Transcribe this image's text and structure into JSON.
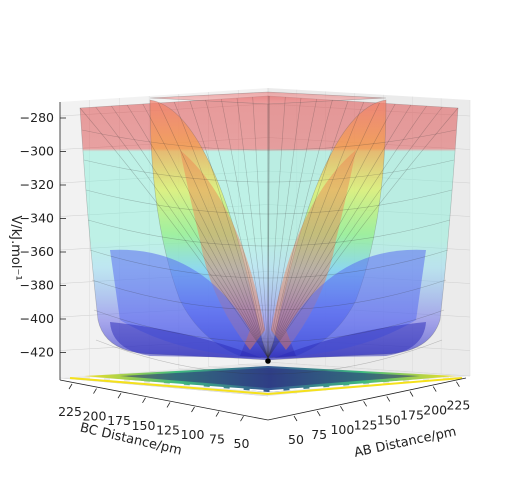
{
  "chart_data": {
    "type": "surface",
    "title": "",
    "xlabel": "AB Distance/pm",
    "ylabel": "BC Distance/pm",
    "zlabel": "V/kJ.mol⁻¹",
    "x_ticks": [
      "50",
      "75",
      "100",
      "125",
      "150",
      "175",
      "200",
      "225"
    ],
    "y_ticks": [
      "225",
      "200",
      "175",
      "150",
      "125",
      "100",
      "75",
      "50"
    ],
    "z_ticks": [
      "−280",
      "−300",
      "−320",
      "−340",
      "−360",
      "−380",
      "−400",
      "−420"
    ],
    "xlim": [
      50,
      230
    ],
    "ylim": [
      50,
      230
    ],
    "zlim": [
      -435,
      -275
    ],
    "colormap_surface": "jet",
    "colormap_contour": "viridis",
    "grid": true,
    "marker_point": {
      "x": 74,
      "y": 74,
      "z": -432
    },
    "colors": {
      "pane": "#f2f2f2",
      "red": "#e05555",
      "orange": "#f4a24a",
      "yellow": "#e6f05a",
      "green": "#8ef07a",
      "cyan": "#70f0d0",
      "blue": "#5a6ef0",
      "navy": "#2a2ab8"
    }
  }
}
